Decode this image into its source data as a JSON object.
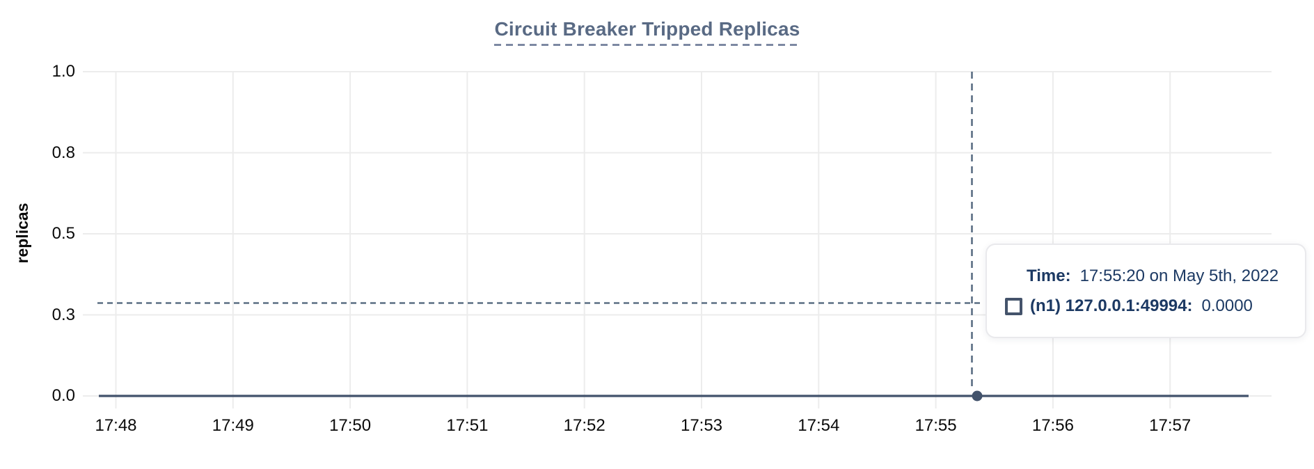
{
  "title": "Circuit Breaker Tripped Replicas",
  "y_axis": {
    "label": "replicas",
    "tick_labels": [
      "1.0",
      "0.8",
      "0.5",
      "0.3",
      "0.0"
    ]
  },
  "x_axis": {
    "tick_labels": [
      "17:48",
      "17:49",
      "17:50",
      "17:51",
      "17:52",
      "17:53",
      "17:54",
      "17:55",
      "17:56",
      "17:57"
    ]
  },
  "tooltip": {
    "time_label": "Time:",
    "time_value": "17:55:20 on May 5th, 2022",
    "series_icon": "square-outline-icon",
    "series_label": "(n1) 127.0.0.1:49994:",
    "series_value": "0.0000"
  },
  "colors": {
    "title": "#596a84",
    "title_underline": "#7d89a3",
    "gridline": "#ececec",
    "axis_text": "#0a0a0a",
    "series_line": "#42526b",
    "crosshair": "#5b6e84",
    "tooltip_text": "#1c3963",
    "tooltip_border": "#e9e9ec"
  },
  "chart_data": {
    "type": "line",
    "title": "Circuit Breaker Tripped Replicas",
    "xlabel": "",
    "ylabel": "replicas",
    "ylim": [
      0,
      1.05
    ],
    "grid": true,
    "y_ticks": [
      0,
      0.25,
      0.5,
      0.75,
      1.0
    ],
    "y_tick_labels": [
      "0.0",
      "0.3",
      "0.5",
      "0.8",
      "1.0"
    ],
    "x_ticks": [
      "17:48",
      "17:49",
      "17:50",
      "17:51",
      "17:52",
      "17:53",
      "17:54",
      "17:55",
      "17:56",
      "17:57"
    ],
    "series": [
      {
        "name": "(n1) 127.0.0.1:49994",
        "x": [
          "17:48",
          "17:49",
          "17:50",
          "17:51",
          "17:52",
          "17:53",
          "17:54",
          "17:55",
          "17:56",
          "17:57"
        ],
        "values": [
          0,
          0,
          0,
          0,
          0,
          0,
          0,
          0,
          0,
          0
        ],
        "note": "constant 0 from ~17:47:50 to ~17:57:40"
      }
    ],
    "cursor": {
      "time": "17:55:20",
      "date": "May 5th, 2022",
      "value": 0.0,
      "display_value": "0.0000",
      "crosshair_y_value": 0.29
    },
    "legend_position": "tooltip"
  }
}
